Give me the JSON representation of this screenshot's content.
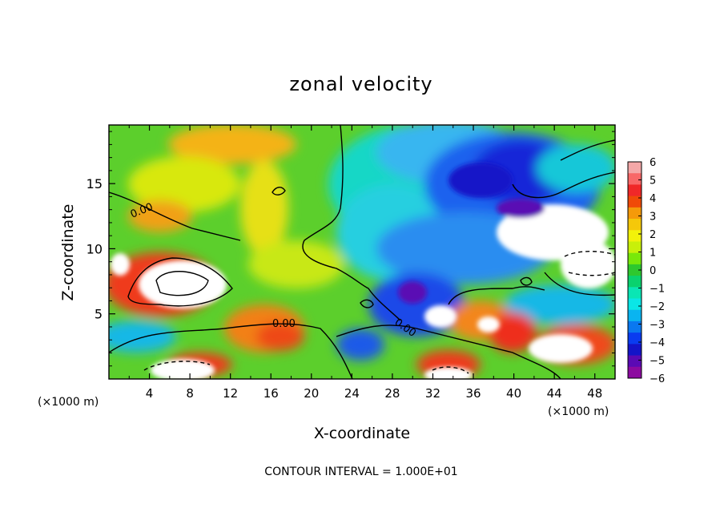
{
  "chart_data": {
    "type": "heatmap",
    "title": "zonal velocity",
    "xlabel": "X-coordinate",
    "ylabel": "Z-coordinate",
    "x_unit": "(×1000 m)",
    "z_unit": "(×1000 m)",
    "footer": "CONTOUR INTERVAL = 1.000E+01",
    "xlim": [
      0,
      50
    ],
    "ylim": [
      0,
      19.5
    ],
    "x_ticks": [
      "4",
      "8",
      "12",
      "16",
      "20",
      "24",
      "28",
      "32",
      "36",
      "40",
      "44",
      "48"
    ],
    "y_ticks": [
      "5",
      "10",
      "15"
    ],
    "colorbar": {
      "min": -6,
      "max": 6,
      "ticks": [
        "6",
        "5",
        "4",
        "3",
        "2",
        "1",
        "0",
        "−1",
        "−2",
        "−3",
        "−4",
        "−5",
        "−6"
      ],
      "colors": [
        "#f4a8a8",
        "#f86868",
        "#f02828",
        "#f04a08",
        "#f59a0a",
        "#f5c80a",
        "#f2f20a",
        "#c8f00a",
        "#78e80a",
        "#2ec82e",
        "#0ad26e",
        "#0ae6b4",
        "#0ae6e6",
        "#0ab4f0",
        "#0a78f0",
        "#0a3cf0",
        "#1414c8",
        "#5a0ab4",
        "#8c0aa0"
      ]
    },
    "contour_labels": [
      "0.00",
      "0.00",
      "0.00"
    ],
    "grid": false,
    "legend": "colorbar-right"
  }
}
